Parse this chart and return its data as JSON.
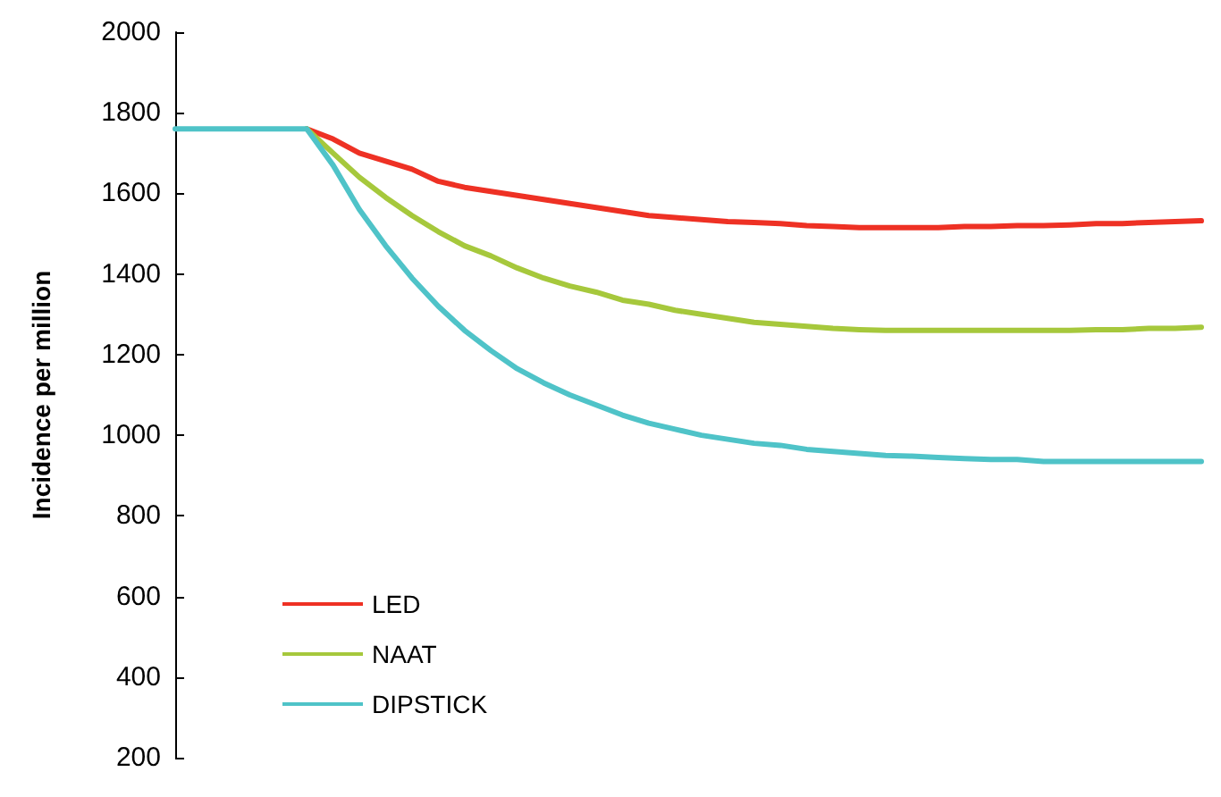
{
  "chart_data": {
    "type": "line",
    "ylabel": "Incidence per million",
    "categories": [
      null,
      null,
      null,
      null,
      null,
      null,
      null,
      null,
      null,
      null,
      null,
      null,
      null,
      null,
      null,
      null,
      null,
      null,
      null,
      null,
      null,
      null,
      null,
      null,
      null,
      null,
      null,
      null,
      null,
      null,
      null,
      null,
      null,
      null,
      null,
      null,
      null,
      null,
      null,
      null
    ],
    "series": [
      {
        "name": "LED",
        "color": "#ee3124",
        "values": [
          null,
          null,
          null,
          null,
          null,
          1760,
          1735,
          1700,
          1680,
          1660,
          1630,
          1615,
          1605,
          1595,
          1585,
          1575,
          1565,
          1555,
          1545,
          1540,
          1535,
          1530,
          1528,
          1525,
          1520,
          1518,
          1515,
          1515,
          1515,
          1515,
          1518,
          1518,
          1520,
          1520,
          1522,
          1525,
          1525,
          1528,
          1530,
          1532
        ]
      },
      {
        "name": "NAAT",
        "color": "#a6c83c",
        "values": [
          null,
          null,
          null,
          null,
          null,
          1760,
          1700,
          1640,
          1590,
          1545,
          1505,
          1470,
          1445,
          1415,
          1390,
          1370,
          1355,
          1335,
          1325,
          1310,
          1300,
          1290,
          1280,
          1275,
          1270,
          1265,
          1262,
          1260,
          1260,
          1260,
          1260,
          1260,
          1260,
          1260,
          1260,
          1262,
          1262,
          1265,
          1265,
          1268
        ]
      },
      {
        "name": "DIPSTICK",
        "color": "#4fc3c8",
        "values": [
          1760,
          1760,
          1760,
          1760,
          1760,
          1760,
          1670,
          1560,
          1470,
          1390,
          1320,
          1260,
          1210,
          1165,
          1130,
          1100,
          1075,
          1050,
          1030,
          1015,
          1000,
          990,
          980,
          975,
          965,
          960,
          955,
          950,
          948,
          945,
          942,
          940,
          940,
          935,
          935,
          935,
          935,
          935,
          935,
          935
        ]
      }
    ],
    "ylim": [
      200,
      2000
    ],
    "yticks": [
      200,
      400,
      600,
      800,
      1000,
      1200,
      1400,
      1600,
      1800,
      2000
    ],
    "grid": false,
    "legend": "bottom left",
    "marker": "none",
    "line_style": "solid",
    "tick_labels": "y"
  }
}
